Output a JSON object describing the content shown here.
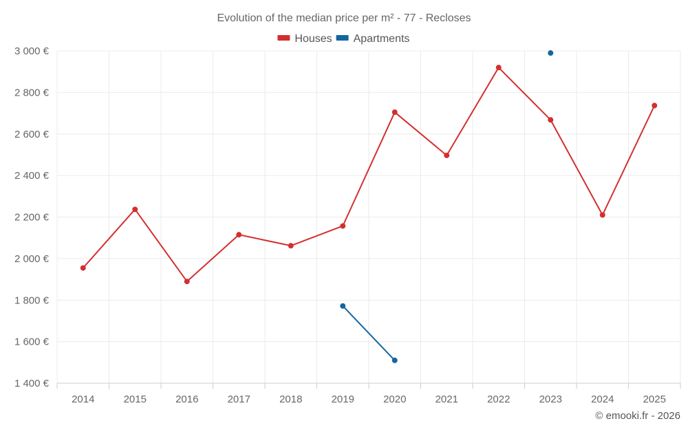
{
  "chart_data": {
    "type": "line",
    "title": "Evolution of the median price per m² - 77 - Recloses",
    "categories": [
      "2014",
      "2015",
      "2016",
      "2017",
      "2018",
      "2019",
      "2020",
      "2021",
      "2022",
      "2023",
      "2024",
      "2025"
    ],
    "series": [
      {
        "name": "Houses",
        "color": "#d32f2f",
        "values": [
          1955,
          2237,
          1890,
          2115,
          2062,
          2157,
          2705,
          2497,
          2920,
          2668,
          2210,
          2737
        ]
      },
      {
        "name": "Apartments",
        "color": "#1565a0",
        "values": [
          null,
          null,
          null,
          null,
          null,
          1772,
          1510,
          null,
          null,
          2990,
          null,
          null
        ]
      }
    ],
    "ylim": [
      1400,
      3000
    ],
    "yticks": [
      1400,
      1600,
      1800,
      2000,
      2200,
      2400,
      2600,
      2800,
      3000
    ],
    "ytick_labels": [
      "1 400 €",
      "1 600 €",
      "1 800 €",
      "2 000 €",
      "2 200 €",
      "2 400 €",
      "2 600 €",
      "2 800 €",
      "3 000 €"
    ],
    "grid": true,
    "legend_position": "top-center",
    "credit": "© emooki.fr - 2026"
  }
}
